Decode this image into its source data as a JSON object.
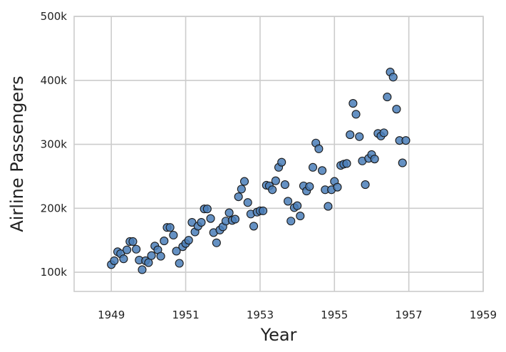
{
  "chart_data": {
    "type": "scatter",
    "title": "",
    "xlabel": "Year",
    "ylabel": "Airline Passengers",
    "xlim": [
      1948,
      1959
    ],
    "ylim": [
      70000,
      500000
    ],
    "grid": true,
    "colors": {
      "point": "#4a7eb8",
      "edge": "#1a1a1a",
      "grid": "#cccccc"
    },
    "x_ticks": [
      {
        "value": 1949,
        "label": "1949"
      },
      {
        "value": 1951,
        "label": "1951"
      },
      {
        "value": 1953,
        "label": "1953"
      },
      {
        "value": 1955,
        "label": "1955"
      },
      {
        "value": 1957,
        "label": "1957"
      },
      {
        "value": 1959,
        "label": "1959"
      }
    ],
    "y_ticks": [
      {
        "value": 100000,
        "label": "100k"
      },
      {
        "value": 200000,
        "label": "200k"
      },
      {
        "value": 300000,
        "label": "300k"
      },
      {
        "value": 400000,
        "label": "400k"
      },
      {
        "value": 500000,
        "label": "500k"
      }
    ],
    "points": [
      [
        1949.0,
        112000
      ],
      [
        1949.08,
        118000
      ],
      [
        1949.17,
        132000
      ],
      [
        1949.25,
        129000
      ],
      [
        1949.33,
        121000
      ],
      [
        1949.42,
        135000
      ],
      [
        1949.5,
        148000
      ],
      [
        1949.58,
        148000
      ],
      [
        1949.67,
        136000
      ],
      [
        1949.75,
        119000
      ],
      [
        1949.83,
        104000
      ],
      [
        1949.92,
        118000
      ],
      [
        1950.0,
        115000
      ],
      [
        1950.08,
        126000
      ],
      [
        1950.17,
        141000
      ],
      [
        1950.25,
        135000
      ],
      [
        1950.33,
        125000
      ],
      [
        1950.42,
        149000
      ],
      [
        1950.5,
        170000
      ],
      [
        1950.58,
        170000
      ],
      [
        1950.67,
        158000
      ],
      [
        1950.75,
        133000
      ],
      [
        1950.83,
        114000
      ],
      [
        1950.92,
        140000
      ],
      [
        1951.0,
        145000
      ],
      [
        1951.08,
        150000
      ],
      [
        1951.17,
        178000
      ],
      [
        1951.25,
        163000
      ],
      [
        1951.33,
        172000
      ],
      [
        1951.42,
        178000
      ],
      [
        1951.5,
        199000
      ],
      [
        1951.58,
        199000
      ],
      [
        1951.67,
        184000
      ],
      [
        1951.75,
        162000
      ],
      [
        1951.83,
        146000
      ],
      [
        1951.92,
        166000
      ],
      [
        1952.0,
        171000
      ],
      [
        1952.08,
        180000
      ],
      [
        1952.17,
        193000
      ],
      [
        1952.25,
        181000
      ],
      [
        1952.33,
        183000
      ],
      [
        1952.42,
        218000
      ],
      [
        1952.5,
        230000
      ],
      [
        1952.58,
        242000
      ],
      [
        1952.67,
        209000
      ],
      [
        1952.75,
        191000
      ],
      [
        1952.83,
        172000
      ],
      [
        1952.92,
        194000
      ],
      [
        1953.0,
        196000
      ],
      [
        1953.08,
        196000
      ],
      [
        1953.17,
        236000
      ],
      [
        1953.25,
        235000
      ],
      [
        1953.33,
        229000
      ],
      [
        1953.42,
        243000
      ],
      [
        1953.5,
        264000
      ],
      [
        1953.58,
        272000
      ],
      [
        1953.67,
        237000
      ],
      [
        1953.75,
        211000
      ],
      [
        1953.83,
        180000
      ],
      [
        1953.92,
        201000
      ],
      [
        1954.0,
        204000
      ],
      [
        1954.08,
        188000
      ],
      [
        1954.17,
        235000
      ],
      [
        1954.25,
        227000
      ],
      [
        1954.33,
        234000
      ],
      [
        1954.42,
        264000
      ],
      [
        1954.5,
        302000
      ],
      [
        1954.58,
        293000
      ],
      [
        1954.67,
        259000
      ],
      [
        1954.75,
        229000
      ],
      [
        1954.83,
        203000
      ],
      [
        1954.92,
        229000
      ],
      [
        1955.0,
        242000
      ],
      [
        1955.08,
        233000
      ],
      [
        1955.17,
        267000
      ],
      [
        1955.25,
        269000
      ],
      [
        1955.33,
        270000
      ],
      [
        1955.42,
        315000
      ],
      [
        1955.5,
        364000
      ],
      [
        1955.58,
        347000
      ],
      [
        1955.67,
        312000
      ],
      [
        1955.75,
        274000
      ],
      [
        1955.83,
        237000
      ],
      [
        1955.92,
        278000
      ],
      [
        1956.0,
        284000
      ],
      [
        1956.08,
        277000
      ],
      [
        1956.17,
        317000
      ],
      [
        1956.25,
        313000
      ],
      [
        1956.33,
        318000
      ],
      [
        1956.42,
        374000
      ],
      [
        1956.5,
        413000
      ],
      [
        1956.58,
        405000
      ],
      [
        1956.67,
        355000
      ],
      [
        1956.75,
        306000
      ],
      [
        1956.83,
        271000
      ],
      [
        1956.92,
        306000
      ]
    ]
  }
}
